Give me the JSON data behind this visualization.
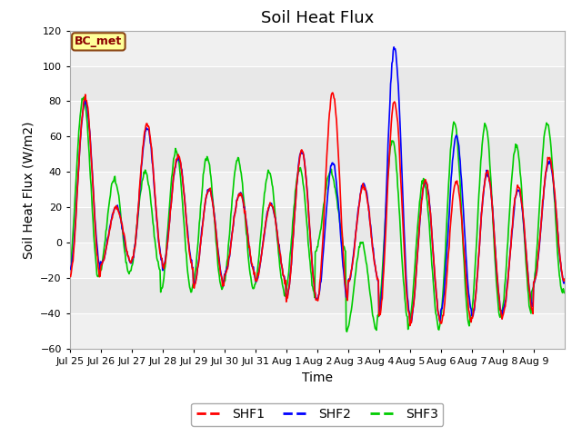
{
  "title": "Soil Heat Flux",
  "ylabel": "Soil Heat Flux (W/m2)",
  "xlabel": "Time",
  "ylim": [
    -60,
    120
  ],
  "yticks": [
    -60,
    -40,
    -20,
    0,
    20,
    40,
    60,
    80,
    100,
    120
  ],
  "colors": {
    "SHF1": "#ff0000",
    "SHF2": "#0000ff",
    "SHF3": "#00cc00"
  },
  "legend_labels": [
    "SHF1",
    "SHF2",
    "SHF3"
  ],
  "xtick_labels": [
    "Jul 25",
    "Jul 26",
    "Jul 27",
    "Jul 28",
    "Jul 29",
    "Jul 30",
    "Jul 31",
    "Aug 1",
    "Aug 2",
    "Aug 3",
    "Aug 4",
    "Aug 5",
    "Aug 6",
    "Aug 7",
    "Aug 8",
    "Aug 9"
  ],
  "bc_met_label": "BC_met",
  "plot_bg_color": "#e8e8e8",
  "fig_bg_color": "#ffffff",
  "title_fontsize": 13,
  "axis_label_fontsize": 10,
  "tick_fontsize": 8,
  "legend_fontsize": 10,
  "line_width": 1.2,
  "band_light_color": "#f0f0f0",
  "band_dark_color": "#e0e0e0"
}
